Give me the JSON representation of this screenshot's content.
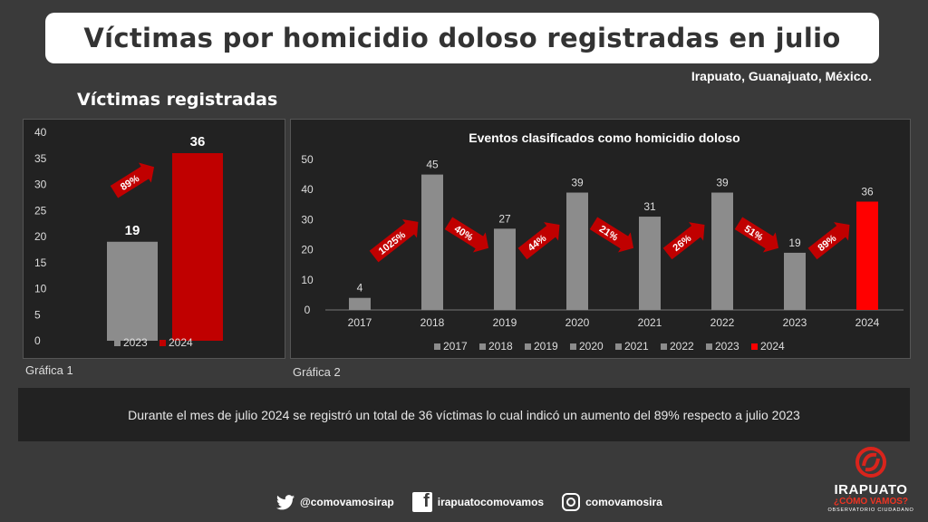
{
  "header": {
    "title": "Víctimas por homicidio doloso registradas en julio",
    "location": "Irapuato, Guanajuato, México."
  },
  "section_title": "Víctimas registradas",
  "captions": {
    "chart1": "Gráfica 1",
    "chart2": "Gráfica 2"
  },
  "summary": "Durante el mes de julio 2024 se registró un total de 36 víctimas lo cual indicó un aumento del 89% respecto a julio 2023",
  "footer": {
    "twitter": "@comovamosirap",
    "facebook": "irapuatocomovamos",
    "instagram": "comovamosira"
  },
  "logo": {
    "line1": "IRAPUATO",
    "line2": "¿CÓMO VAMOS?",
    "line3": "OBSERVATORIO CIUDADANO"
  },
  "colors": {
    "gray_bar": "#8c8c8c",
    "red_bar_dark": "#c00000",
    "red_bar_bright": "#ff0000",
    "arrow": "#c00000"
  },
  "icons": {
    "facebook": "f"
  },
  "chart_data": [
    {
      "type": "bar",
      "categories": [
        "2023",
        "2024"
      ],
      "values": [
        19,
        36
      ],
      "title": "",
      "ylim": [
        0,
        40
      ],
      "yticks": [
        0,
        5,
        10,
        15,
        20,
        25,
        30,
        35,
        40
      ],
      "legend": [
        "2023",
        "2024"
      ],
      "legend_position": "bottom",
      "annotations": [
        {
          "text": "89%",
          "direction": "up"
        }
      ]
    },
    {
      "type": "bar",
      "title": "Eventos clasificados como homicidio doloso",
      "categories": [
        "2017",
        "2018",
        "2019",
        "2020",
        "2021",
        "2022",
        "2023",
        "2024"
      ],
      "values": [
        4,
        45,
        27,
        39,
        31,
        39,
        19,
        36
      ],
      "ylim": [
        0,
        50
      ],
      "yticks": [
        0,
        10,
        20,
        30,
        40,
        50
      ],
      "legend": [
        "2017",
        "2018",
        "2019",
        "2020",
        "2021",
        "2022",
        "2023",
        "2024"
      ],
      "legend_position": "bottom",
      "annotations": [
        {
          "text": "1025%",
          "direction": "up"
        },
        {
          "text": "40%",
          "direction": "down"
        },
        {
          "text": "44%",
          "direction": "up"
        },
        {
          "text": "21%",
          "direction": "down"
        },
        {
          "text": "26%",
          "direction": "up"
        },
        {
          "text": "51%",
          "direction": "down"
        },
        {
          "text": "89%",
          "direction": "up"
        }
      ]
    }
  ]
}
